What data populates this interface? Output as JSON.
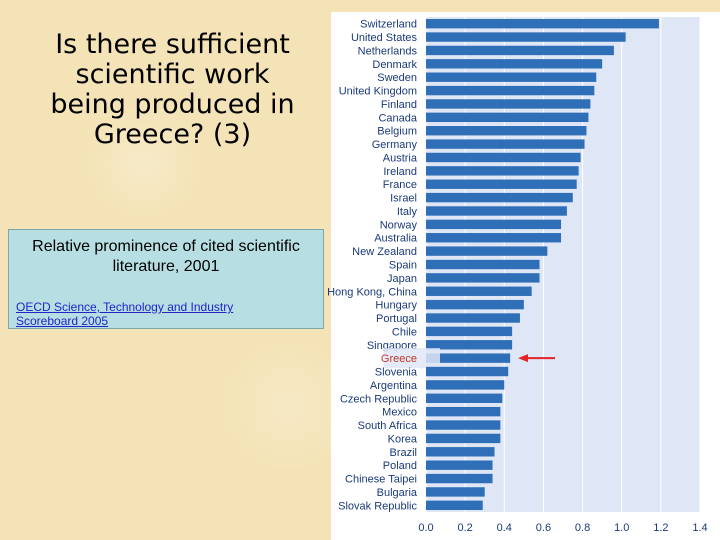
{
  "slide": {
    "title": "Is there sufficient scientific work being produced in Greece? (3)",
    "subtitle": "Relative prominence of cited scientific literature, 2001",
    "source": "OECD Science, Technology and Industry Scoreboard 2005"
  },
  "colors": {
    "bar": "#2f6fb8",
    "plot_bg": "#dfe6f6",
    "highlight_label": "#c0392b",
    "arrow": "#e0242a"
  },
  "chart_data": {
    "type": "bar",
    "orientation": "horizontal",
    "title": "",
    "xlabel": "",
    "ylabel": "",
    "xlim": [
      0,
      1.4
    ],
    "x_ticks": [
      "0.0",
      "0.2",
      "0.4",
      "0.6",
      "0.8",
      "1.0",
      "1.2",
      "1.4"
    ],
    "grid": true,
    "highlight": "Greece",
    "categories": [
      "Switzerland",
      "United States",
      "Netherlands",
      "Denmark",
      "Sweden",
      "United Kingdom",
      "Finland",
      "Canada",
      "Belgium",
      "Germany",
      "Austria",
      "Ireland",
      "France",
      "Israel",
      "Italy",
      "Norway",
      "Australia",
      "New Zealand",
      "Spain",
      "Japan",
      "Hong Kong, China",
      "Hungary",
      "Portugal",
      "Chile",
      "Singapore",
      "Greece",
      "Slovenia",
      "Argentina",
      "Czech Republic",
      "Mexico",
      "South Africa",
      "Korea",
      "Brazil",
      "Poland",
      "Chinese Taipei",
      "Bulgaria",
      "Slovak Republic"
    ],
    "values": [
      1.19,
      1.02,
      0.96,
      0.9,
      0.87,
      0.86,
      0.84,
      0.83,
      0.82,
      0.81,
      0.79,
      0.78,
      0.77,
      0.75,
      0.72,
      0.69,
      0.69,
      0.62,
      0.58,
      0.58,
      0.54,
      0.5,
      0.48,
      0.44,
      0.44,
      0.43,
      0.42,
      0.4,
      0.39,
      0.38,
      0.38,
      0.38,
      0.35,
      0.34,
      0.34,
      0.3,
      0.29
    ]
  }
}
